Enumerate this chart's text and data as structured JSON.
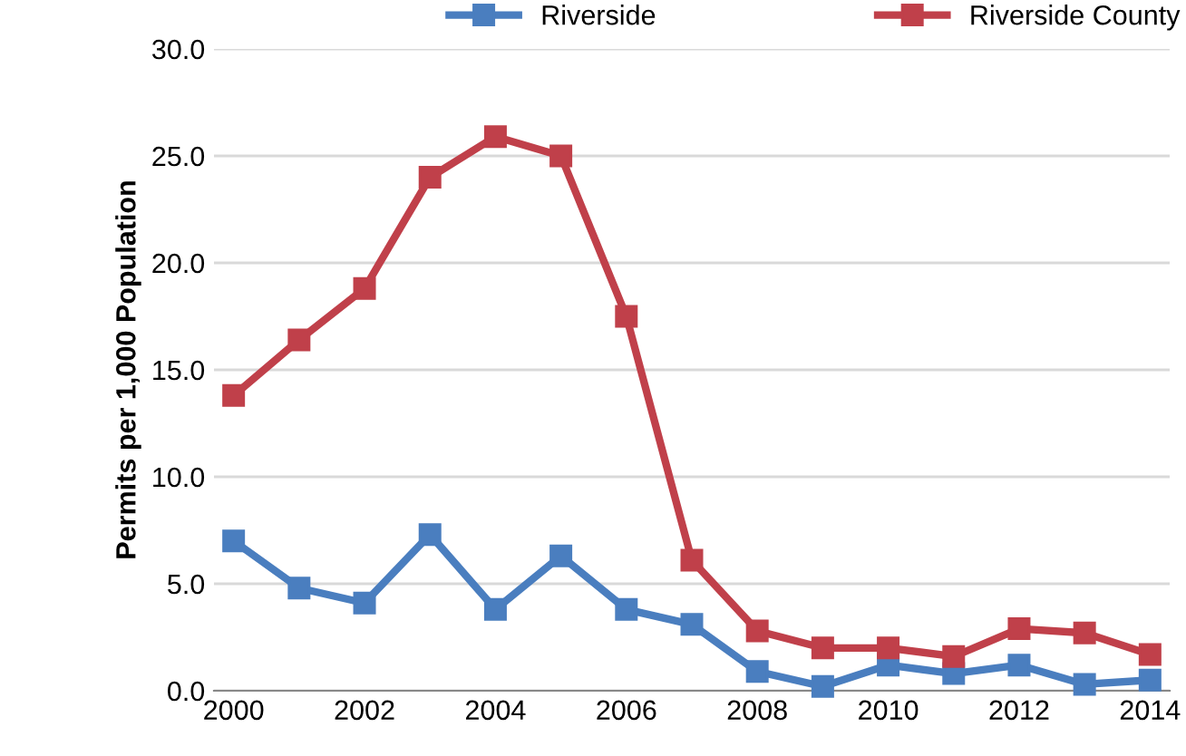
{
  "chart_data": {
    "type": "line",
    "ylabel": "Permits per 1,000 Population",
    "x": [
      2000,
      2001,
      2002,
      2003,
      2004,
      2005,
      2006,
      2007,
      2008,
      2009,
      2010,
      2011,
      2012,
      2013,
      2014
    ],
    "series": [
      {
        "name": "Riverside",
        "color": "#4a7ebf",
        "values": [
          7.0,
          4.8,
          4.1,
          7.3,
          3.8,
          6.3,
          3.8,
          3.1,
          0.9,
          0.2,
          1.2,
          0.8,
          1.2,
          0.3,
          0.5
        ]
      },
      {
        "name": "Riverside County",
        "color": "#c0404a",
        "values": [
          13.8,
          16.4,
          18.8,
          24.0,
          25.9,
          25.0,
          17.5,
          6.1,
          2.8,
          2.0,
          2.0,
          1.6,
          2.9,
          2.7,
          1.7
        ]
      }
    ],
    "xlim": [
      1999.7,
      2014.3
    ],
    "xticks": [
      2000,
      2002,
      2004,
      2006,
      2008,
      2010,
      2012,
      2014
    ],
    "ylim": [
      0,
      30
    ],
    "yticks": [
      {
        "value": 0,
        "label": "0.0"
      },
      {
        "value": 5,
        "label": "5.0"
      },
      {
        "value": 10,
        "label": "10.0"
      },
      {
        "value": 15,
        "label": "15.0"
      },
      {
        "value": 20,
        "label": "20.0"
      },
      {
        "value": 25,
        "label": "25.0"
      },
      {
        "value": 30,
        "label": "30.0"
      }
    ],
    "grid": "y",
    "legend": "top",
    "marker": "square",
    "line_style": "solid"
  }
}
